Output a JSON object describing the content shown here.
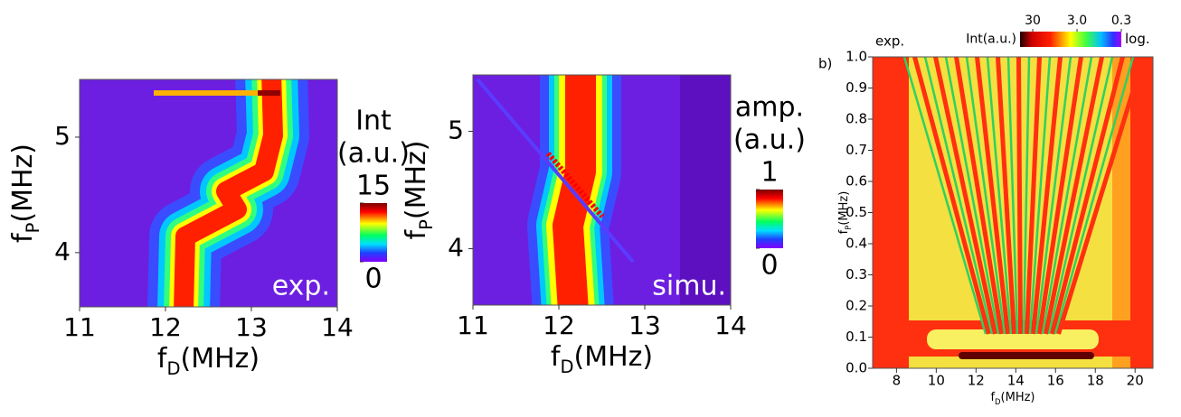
{
  "chart_data": [
    {
      "type": "heatmap",
      "annotation": "exp.",
      "x_label": {
        "text": "f",
        "sub": "D",
        "unit": "(MHz)"
      },
      "y_label": {
        "text": "f",
        "sub": "P",
        "unit": "(MHz)"
      },
      "xlim": [
        11,
        14
      ],
      "xticks": [
        11,
        12,
        13,
        14
      ],
      "ylim": [
        3.53,
        5.5
      ],
      "yticks": [
        4,
        5
      ],
      "colorbar": {
        "title": [
          "Int",
          "(a.u.)"
        ],
        "clim": [
          0,
          15
        ],
        "ticks": [
          15,
          0
        ]
      }
    },
    {
      "type": "heatmap",
      "annotation": "simu.",
      "x_label": {
        "text": "f",
        "sub": "D",
        "unit": "(MHz)"
      },
      "y_label": {
        "text": "f",
        "sub": "P",
        "unit": "(MHz)"
      },
      "xlim": [
        11,
        14
      ],
      "xticks": [
        11,
        12,
        13,
        14
      ],
      "ylim": [
        3.52,
        5.48
      ],
      "yticks": [
        4,
        5
      ],
      "colorbar": {
        "title": [
          "amp.",
          "(a.u.)"
        ],
        "clim": [
          0,
          1
        ],
        "ticks": [
          1,
          0
        ]
      }
    },
    {
      "type": "heatmap",
      "annotation": "exp.",
      "panel_label": "b)",
      "x_label": {
        "text": "f",
        "sub": "D",
        "unit": "(MHz)"
      },
      "y_label": {
        "text": "f",
        "sub": "P",
        "unit": "(MHz)"
      },
      "xlim": [
        6.8,
        20.9
      ],
      "xticks": [
        8,
        10,
        12,
        14,
        16,
        18,
        20
      ],
      "ylim": [
        0,
        1
      ],
      "yticks": [
        {
          "value": 0,
          "label": "0.0"
        },
        0.1,
        0.2,
        0.3,
        0.4,
        0.5,
        0.6,
        0.7,
        0.8,
        0.9,
        {
          "value": 1,
          "label": "1.0"
        }
      ],
      "colorbar": {
        "title": [
          "Int(a.u.)"
        ],
        "scale_label": "log.",
        "log": true,
        "clim": [
          58,
          0.3
        ],
        "ticks": [
          30,
          {
            "value": 3,
            "label": "3.0"
          },
          0.3
        ]
      }
    }
  ]
}
